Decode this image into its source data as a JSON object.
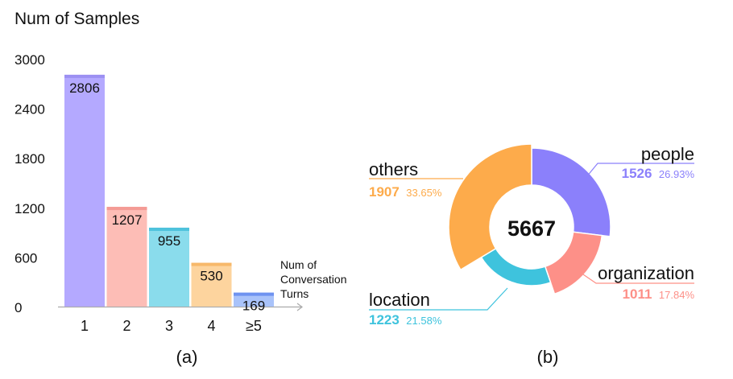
{
  "chart_data": [
    {
      "type": "bar",
      "ylabel": "Num of Samples",
      "xlabel": [
        "Num of",
        "Conversation",
        "Turns"
      ],
      "caption": "(a)",
      "categories": [
        "1",
        "2",
        "3",
        "4",
        "≥5"
      ],
      "values": [
        2806,
        1207,
        955,
        530,
        169
      ],
      "ylim": [
        0,
        3000
      ],
      "yticks": [
        0,
        600,
        1200,
        1800,
        2400,
        3000
      ],
      "ytick_labels": [
        "0",
        "600",
        "1200",
        "1800",
        "2400",
        "3000"
      ],
      "colors": [
        "#b4a9ff",
        "#fdbdb6",
        "#8adcec",
        "#fdd49e",
        "#a9c3fa"
      ],
      "cap_colors": [
        "#9c90f2",
        "#f49b95",
        "#4ec2dc",
        "#f7b86a",
        "#6f93f0"
      ],
      "axis_color": "#aaaaaa"
    },
    {
      "type": "pie",
      "style": "donut",
      "caption": "(b)",
      "center_total": "5667",
      "slices": [
        {
          "label": "people",
          "value": 1526,
          "value_text": "1526",
          "percent": "26.93%",
          "color": "#8b80fb"
        },
        {
          "label": "organization",
          "value": 1011,
          "value_text": "1011",
          "percent": "17.84%",
          "color": "#fd9088"
        },
        {
          "label": "location",
          "value": 1223,
          "value_text": "1223",
          "percent": "21.58%",
          "color": "#3ec3dd"
        },
        {
          "label": "others",
          "value": 1907,
          "value_text": "1907",
          "percent": "33.65%",
          "color": "#fdab4b"
        }
      ]
    }
  ]
}
